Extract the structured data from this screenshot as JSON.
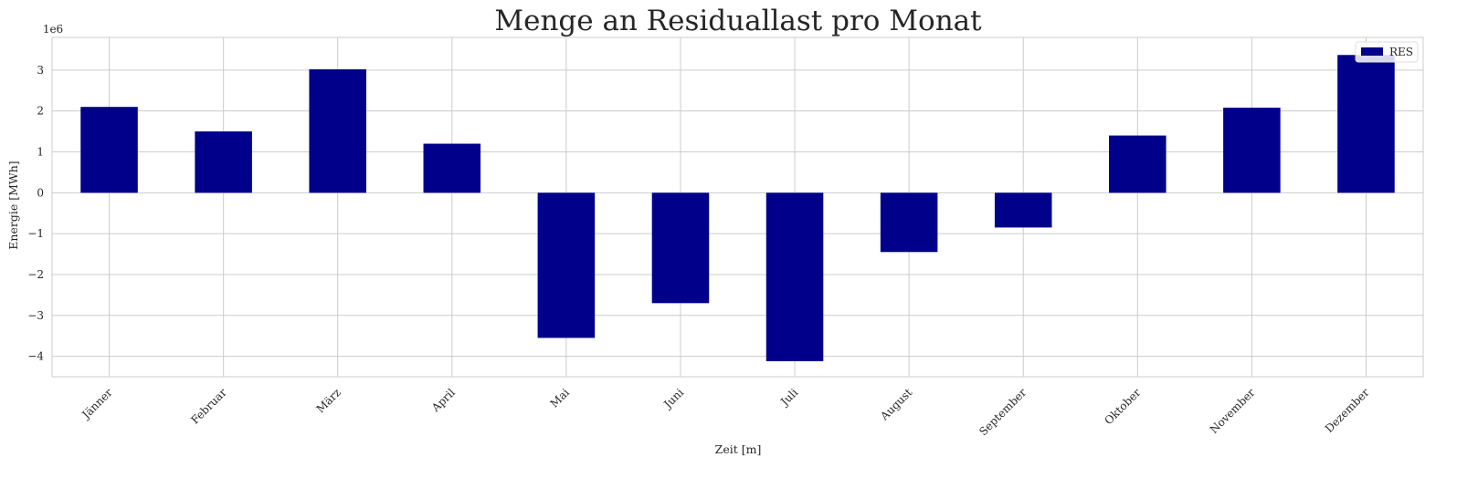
{
  "chart_data": {
    "type": "bar",
    "title": "Menge an Residuallast pro Monat",
    "xlabel": "Zeit [m]",
    "ylabel": "Energie [MWh]",
    "y_scale_label": "1e6",
    "categories": [
      "Jänner",
      "Februar",
      "März",
      "April",
      "Mai",
      "Juni",
      "Juli",
      "August",
      "September",
      "Oktober",
      "November",
      "Dezember"
    ],
    "series": [
      {
        "name": "RES",
        "color": "#00008b",
        "values": [
          2.1,
          1.5,
          3.02,
          1.2,
          -3.55,
          -2.7,
          -4.12,
          -1.45,
          -0.85,
          1.4,
          2.08,
          3.37
        ]
      }
    ],
    "y_ticks": [
      -4,
      -3,
      -2,
      -1,
      0,
      1,
      2,
      3
    ],
    "y_tick_labels": [
      "−4",
      "−3",
      "−2",
      "−1",
      "0",
      "1",
      "2",
      "3"
    ],
    "ylim": [
      -4.5,
      3.8
    ],
    "grid": true,
    "legend_position": "top-right",
    "colors": {
      "grid": "#cccccc",
      "spine": "#cccccc",
      "bar": "#00008b"
    }
  }
}
